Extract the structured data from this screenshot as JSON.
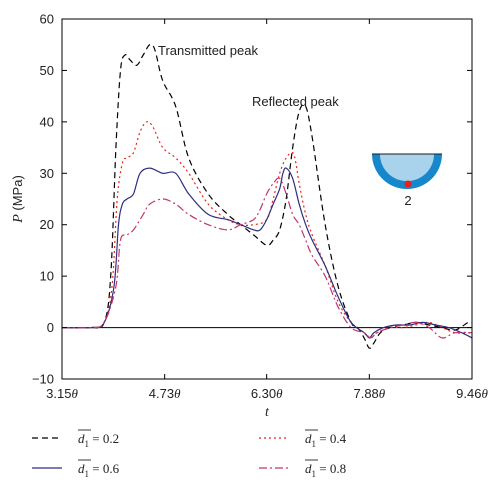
{
  "chart_data": {
    "type": "line",
    "xlabel": "t",
    "ylabel": "P (MPa)",
    "ylim": [
      -10,
      60
    ],
    "xlim": [
      3.15,
      9.46
    ],
    "x_ticks": [
      3.15,
      4.73,
      6.3,
      7.88,
      9.46
    ],
    "x_tick_labels": [
      "3.15θ",
      "4.73θ",
      "6.30θ",
      "7.88θ",
      "9.46θ"
    ],
    "y_ticks": [
      -10,
      0,
      10,
      20,
      30,
      40,
      50,
      60
    ],
    "y_tick_labels": [
      "−10",
      "0",
      "10",
      "20",
      "30",
      "40",
      "50",
      "60"
    ],
    "annotations": {
      "transmitted": "Transmitted peak",
      "reflected": "Reflected peak",
      "inset_label": "2"
    },
    "legend_symbol": "d",
    "legend_subscript": "1",
    "legend_position": "bottom",
    "series": [
      {
        "name": "= 0.2",
        "color": "#000000",
        "dash": "6,4",
        "x": [
          3.15,
          3.6,
          3.8,
          3.9,
          3.98,
          4.05,
          4.12,
          4.2,
          4.3,
          4.4,
          4.5,
          4.58,
          4.7,
          4.9,
          5.1,
          5.4,
          5.7,
          5.9,
          6.1,
          6.3,
          6.4,
          6.5,
          6.6,
          6.7,
          6.8,
          6.9,
          7.0,
          7.2,
          7.4,
          7.6,
          7.7,
          7.8,
          7.88,
          7.95,
          8.05,
          8.2,
          8.4,
          8.6,
          8.8,
          9.0,
          9.2,
          9.4,
          9.46
        ],
        "y": [
          0,
          0,
          1,
          10,
          35,
          50,
          53,
          52,
          51,
          53,
          55,
          54,
          48,
          43,
          33,
          26,
          22,
          20,
          18,
          16,
          17,
          19,
          25,
          35,
          42,
          43,
          37,
          20,
          8,
          1,
          0,
          -2,
          -4,
          -3,
          -1,
          0,
          0.5,
          1,
          0.5,
          0,
          -0.5,
          1,
          1
        ]
      },
      {
        "name": "= 0.4",
        "color": "#e8251a",
        "dash": "2,3",
        "x": [
          3.15,
          3.6,
          3.8,
          3.92,
          4.0,
          4.08,
          4.15,
          4.25,
          4.35,
          4.45,
          4.55,
          4.7,
          4.9,
          5.1,
          5.4,
          5.7,
          5.9,
          6.1,
          6.3,
          6.4,
          6.5,
          6.6,
          6.7,
          6.75,
          6.8,
          6.9,
          7.0,
          7.2,
          7.4,
          7.6,
          7.8,
          7.9,
          8.0,
          8.2,
          8.4,
          8.6,
          8.8,
          9.0,
          9.2,
          9.46
        ],
        "y": [
          0,
          0,
          1,
          8,
          25,
          32,
          33,
          34,
          38,
          40,
          39,
          35,
          33,
          30,
          24,
          21,
          20,
          20,
          21,
          25,
          30,
          33,
          34,
          32,
          28,
          22,
          18,
          12,
          5,
          1,
          -1,
          -2,
          -1,
          0,
          0,
          0.5,
          1,
          0,
          -1,
          -1
        ]
      },
      {
        "name": "= 0.6",
        "color": "#2e2e80",
        "dash": "",
        "x": [
          3.15,
          3.6,
          3.8,
          3.95,
          4.02,
          4.08,
          4.15,
          4.25,
          4.35,
          4.5,
          4.7,
          4.9,
          5.1,
          5.4,
          5.7,
          5.9,
          6.1,
          6.2,
          6.3,
          6.4,
          6.5,
          6.55,
          6.6,
          6.7,
          6.8,
          6.9,
          7.0,
          7.2,
          7.4,
          7.6,
          7.8,
          7.88,
          7.95,
          8.1,
          8.3,
          8.5,
          8.7,
          8.9,
          9.1,
          9.3,
          9.46
        ],
        "y": [
          0,
          0,
          1,
          8,
          20,
          24,
          25,
          26,
          30,
          31,
          30,
          30,
          26,
          22,
          21,
          20,
          19,
          19,
          21,
          24,
          27,
          30,
          31,
          29,
          24,
          20,
          17,
          12,
          6,
          1,
          -1,
          -2,
          -1,
          0,
          0.5,
          0.5,
          1,
          0.5,
          0,
          -1,
          -2
        ]
      },
      {
        "name": "= 0.8",
        "color": "#c0356e",
        "dash": "8,3,2,3",
        "x": [
          3.15,
          3.6,
          3.8,
          3.98,
          4.05,
          4.15,
          4.25,
          4.4,
          4.5,
          4.7,
          4.9,
          5.1,
          5.4,
          5.7,
          5.9,
          6.1,
          6.2,
          6.3,
          6.4,
          6.5,
          6.6,
          6.7,
          6.8,
          6.9,
          7.0,
          7.2,
          7.4,
          7.6,
          7.8,
          7.9,
          8.0,
          8.2,
          8.4,
          8.6,
          8.8,
          9.0,
          9.2,
          9.46
        ],
        "y": [
          0,
          0,
          1,
          8,
          17,
          18,
          19,
          22,
          24,
          25,
          24,
          22,
          20,
          19,
          20,
          21,
          23,
          26,
          28,
          29,
          26,
          22,
          20,
          17,
          14,
          10,
          4,
          0,
          -1,
          -2,
          -1,
          0,
          0.5,
          1,
          0,
          -2,
          -1,
          -1
        ]
      }
    ]
  }
}
